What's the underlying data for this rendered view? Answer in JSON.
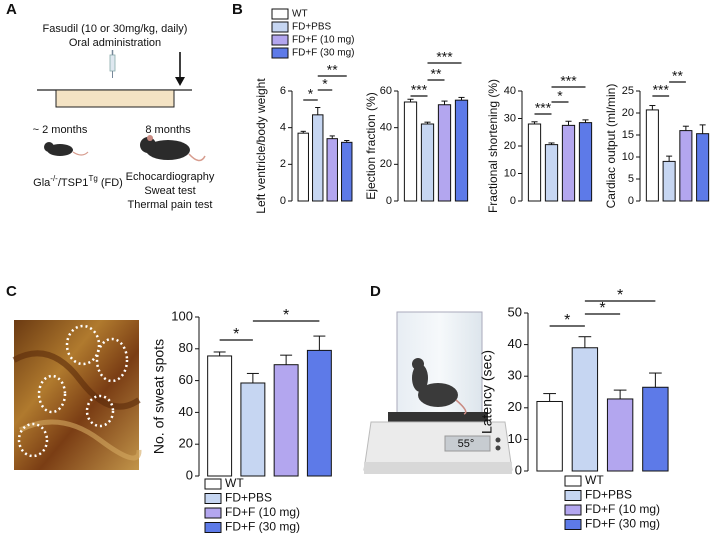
{
  "panels": {
    "a": "A",
    "b": "B",
    "c": "C",
    "d": "D"
  },
  "scheme": {
    "drug": "Fasudil (10 or 30mg/kg, daily)",
    "route": "Oral administration",
    "start": "~ 2 months",
    "end": "8 months",
    "model": [
      "Gla",
      "-/-",
      "/TSP1",
      "Tg",
      " (FD)"
    ],
    "tests": [
      "Echocardiography",
      "Sweat test",
      "Thermal pain test"
    ]
  },
  "device_display": "55°",
  "chart_data": [
    {
      "type": "bar",
      "ylabel": "Left ventricle/body weight",
      "categories": [
        "WT",
        "FD+PBS",
        "FD+F (10 mg)",
        "FD+F (30 mg)"
      ],
      "values": [
        3.7,
        4.7,
        3.4,
        3.2
      ],
      "errors": [
        0.1,
        0.4,
        0.15,
        0.1
      ],
      "colors": [
        "#ffffff",
        "#c6d6f2",
        "#b3a6ef",
        "#5d7ae8"
      ],
      "ylim": [
        0,
        6
      ],
      "yticks": [
        0,
        2,
        4,
        6
      ],
      "significance": [
        "*",
        "*",
        "**"
      ]
    },
    {
      "type": "bar",
      "ylabel": "Ejection fraction (%)",
      "values": [
        54,
        42,
        52.5,
        55
      ],
      "errors": [
        1.5,
        1,
        2,
        1.5
      ],
      "colors": [
        "#ffffff",
        "#c6d6f2",
        "#b3a6ef",
        "#5d7ae8"
      ],
      "ylim": [
        0,
        60
      ],
      "yticks": [
        0,
        20,
        40,
        60
      ],
      "significance": [
        "***",
        "**",
        "***"
      ]
    },
    {
      "type": "bar",
      "ylabel": "Fractional shortening (%)",
      "values": [
        28,
        20.5,
        27.5,
        28.5
      ],
      "errors": [
        0.8,
        0.6,
        1.5,
        1
      ],
      "colors": [
        "#ffffff",
        "#c6d6f2",
        "#b3a6ef",
        "#5d7ae8"
      ],
      "ylim": [
        0,
        40
      ],
      "yticks": [
        0,
        10,
        20,
        30,
        40
      ],
      "significance": [
        "***",
        "*",
        "***"
      ]
    },
    {
      "type": "bar",
      "ylabel": "Cardiac output (ml/min)",
      "values": [
        20.7,
        9,
        16,
        15.3
      ],
      "errors": [
        1,
        1.2,
        1,
        2
      ],
      "colors": [
        "#ffffff",
        "#c6d6f2",
        "#b3a6ef",
        "#5d7ae8"
      ],
      "ylim": [
        0,
        25
      ],
      "yticks": [
        0,
        5,
        10,
        15,
        20,
        25
      ],
      "significance": [
        "***",
        "**"
      ]
    },
    {
      "type": "bar",
      "ylabel": "No. of sweat spots",
      "categories": [
        "WT",
        "FD+PBS",
        "FD+F (10 mg)",
        "FD+F (30 mg)"
      ],
      "values": [
        75.5,
        58.5,
        70,
        79
      ],
      "errors": [
        2.5,
        6,
        6,
        9
      ],
      "colors": [
        "#ffffff",
        "#c6d6f2",
        "#b3a6ef",
        "#5d7ae8"
      ],
      "ylim": [
        0,
        100
      ],
      "yticks": [
        0,
        20,
        40,
        60,
        80,
        100
      ],
      "significance": [
        "*",
        "*"
      ]
    },
    {
      "type": "bar",
      "ylabel": "Latency (sec)",
      "categories": [
        "WT",
        "FD+PBS",
        "FD+F (10 mg)",
        "FD+F (30 mg)"
      ],
      "values": [
        22,
        39,
        22.8,
        26.5
      ],
      "errors": [
        2.5,
        3.5,
        2.8,
        4.5
      ],
      "colors": [
        "#ffffff",
        "#c6d6f2",
        "#b3a6ef",
        "#5d7ae8"
      ],
      "ylim": [
        0,
        50
      ],
      "yticks": [
        0,
        10,
        20,
        30,
        40,
        50
      ],
      "significance": [
        "*",
        "*",
        "*"
      ]
    }
  ]
}
